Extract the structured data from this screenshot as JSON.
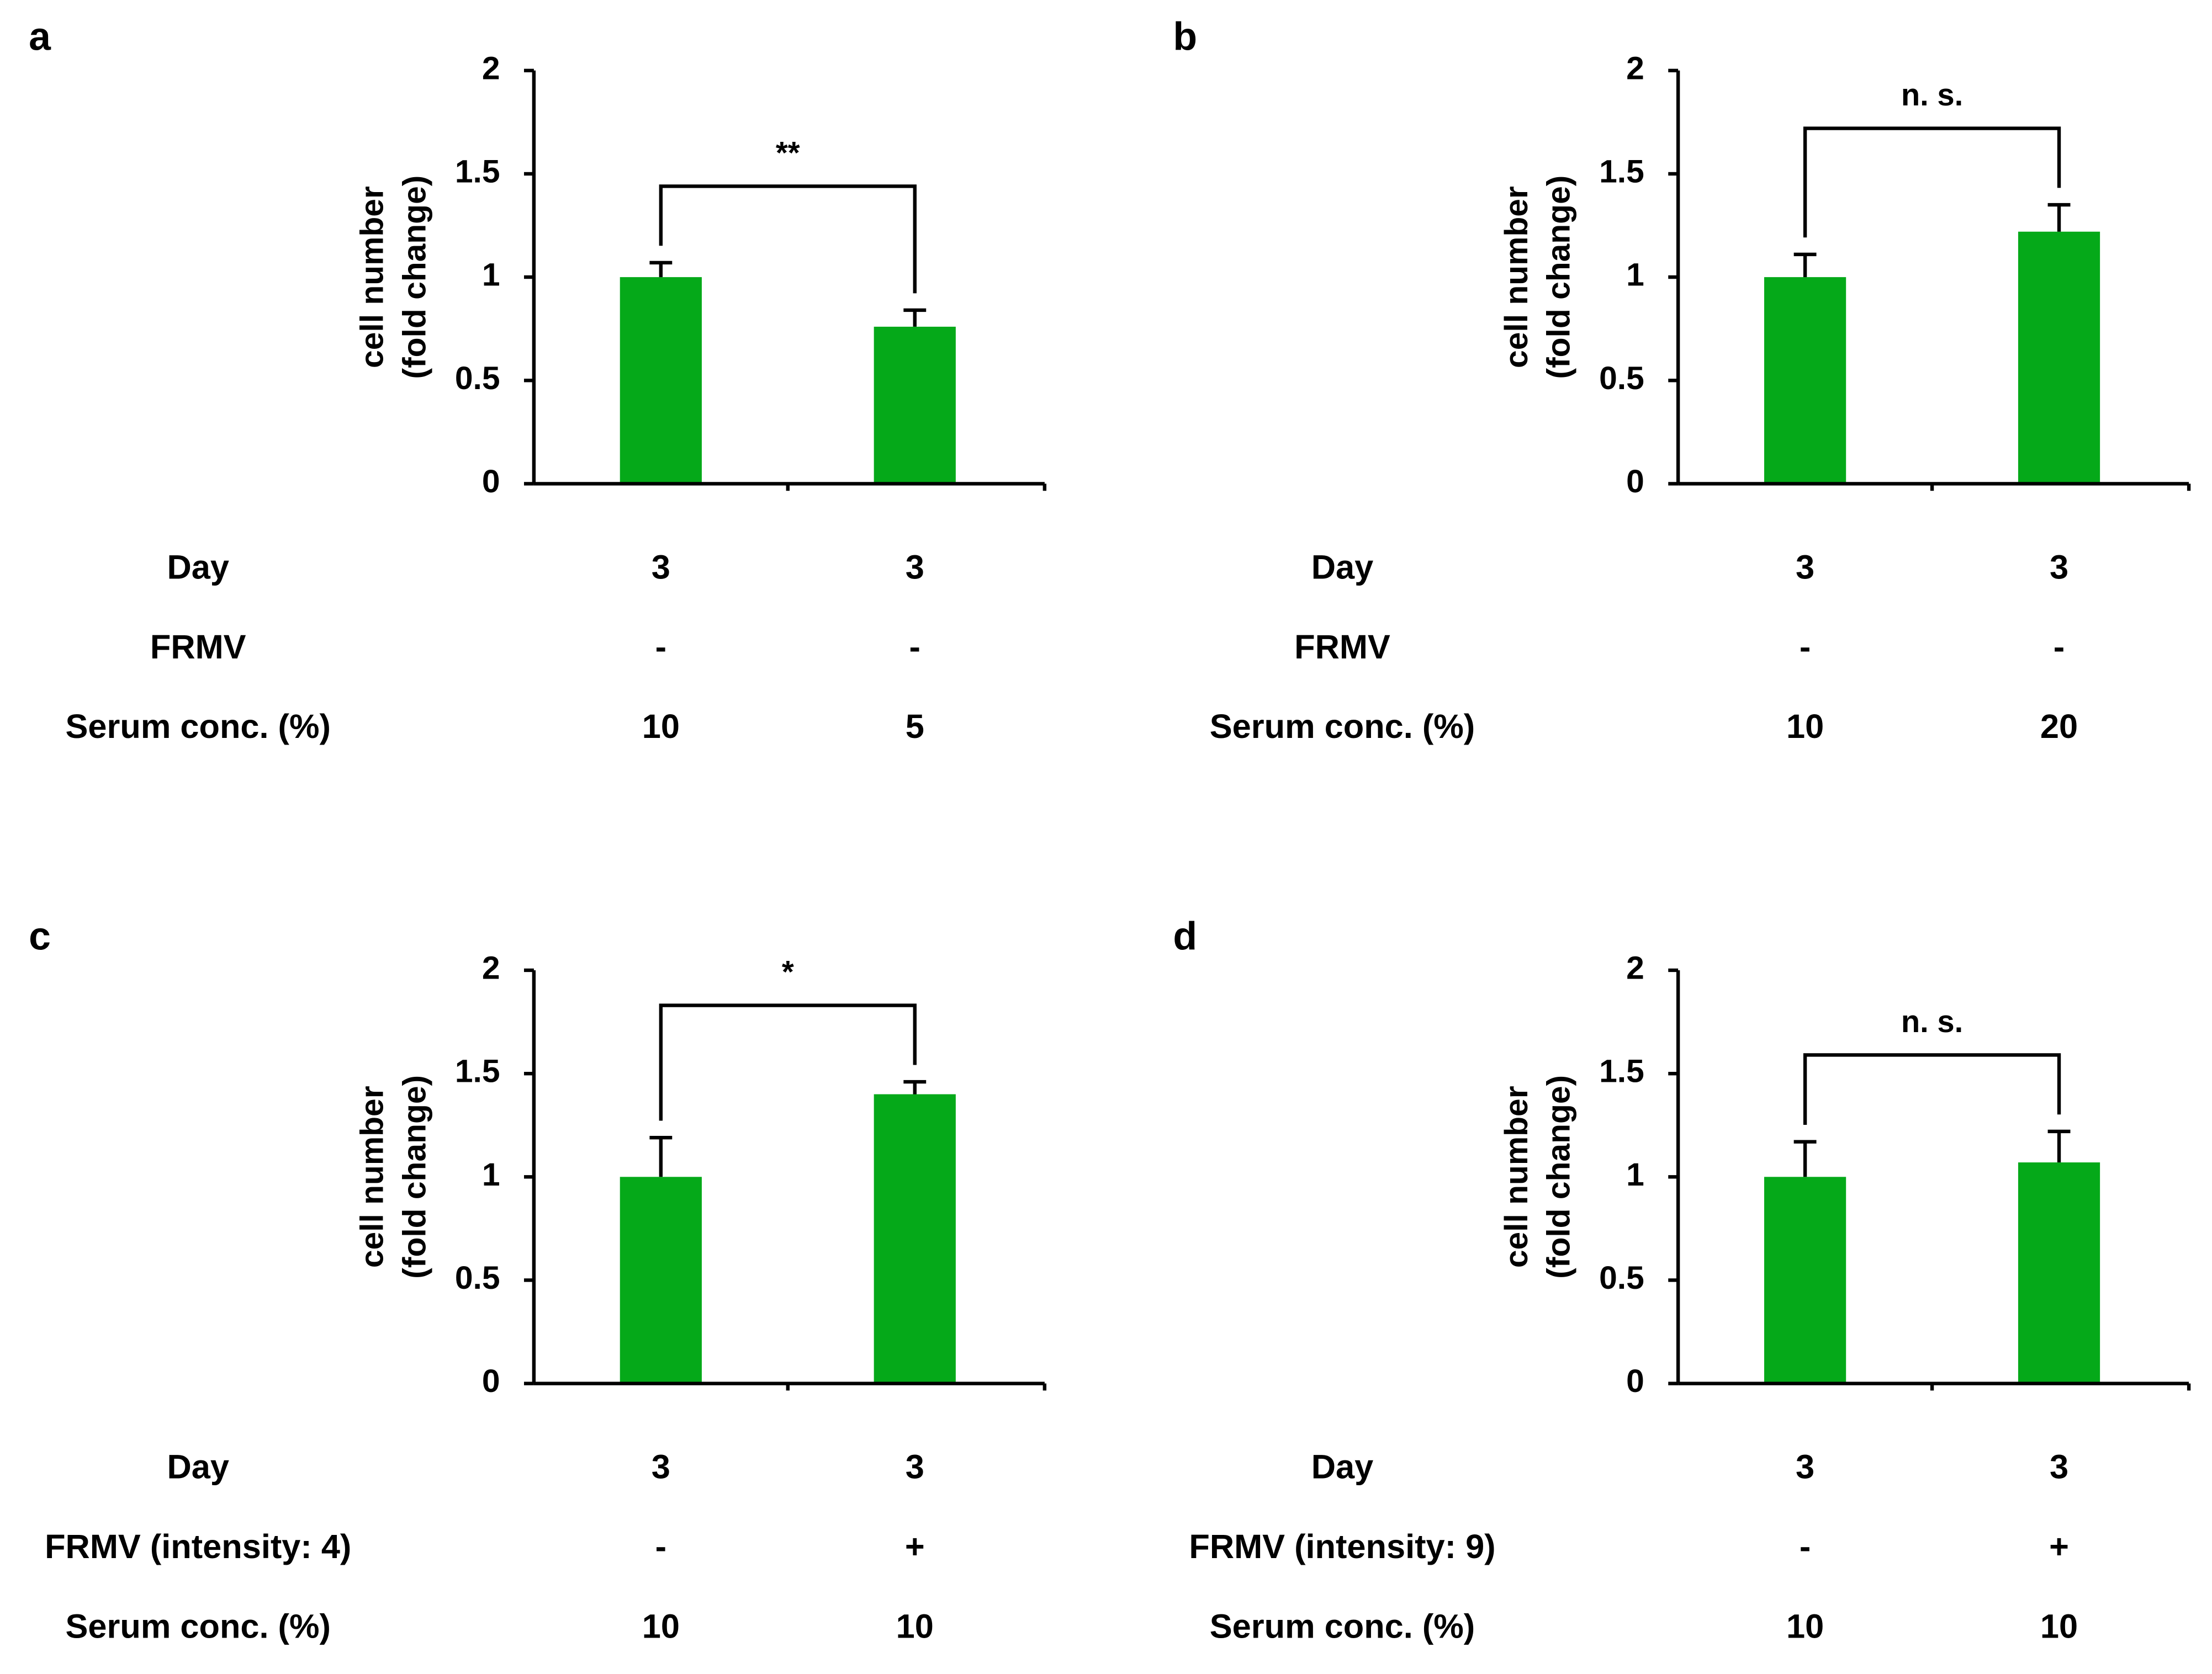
{
  "chart_data": [
    {
      "type": "bar",
      "panel": "a",
      "ylabel": [
        "cell number",
        "(fold change)"
      ],
      "ylim": [
        0,
        2
      ],
      "yticks": [
        0,
        0.5,
        1,
        1.5,
        2
      ],
      "values": [
        1.0,
        0.76
      ],
      "errors": [
        0.07,
        0.08
      ],
      "color": "#05a919",
      "significance": "**",
      "table": [
        {
          "label": "Day",
          "values": [
            "3",
            "3"
          ]
        },
        {
          "label": "FRMV",
          "values": [
            "-",
            "-"
          ]
        },
        {
          "label": "Serum conc. (%)",
          "values": [
            "10",
            "5"
          ]
        }
      ]
    },
    {
      "type": "bar",
      "panel": "b",
      "ylabel": [
        "cell number",
        "(fold change)"
      ],
      "ylim": [
        0,
        2
      ],
      "yticks": [
        0,
        0.5,
        1,
        1.5,
        2
      ],
      "values": [
        1.0,
        1.22
      ],
      "errors": [
        0.11,
        0.13
      ],
      "color": "#05a919",
      "significance": "n. s.",
      "table": [
        {
          "label": "Day",
          "values": [
            "3",
            "3"
          ]
        },
        {
          "label": "FRMV",
          "values": [
            "-",
            "-"
          ]
        },
        {
          "label": "Serum conc. (%)",
          "values": [
            "10",
            "20"
          ]
        }
      ]
    },
    {
      "type": "bar",
      "panel": "c",
      "ylabel": [
        "cell number",
        "(fold change)"
      ],
      "ylim": [
        0,
        2
      ],
      "yticks": [
        0,
        0.5,
        1,
        1.5,
        2
      ],
      "values": [
        1.0,
        1.4
      ],
      "errors": [
        0.19,
        0.06
      ],
      "color": "#05a919",
      "significance": "*",
      "table": [
        {
          "label": "Day",
          "values": [
            "3",
            "3"
          ]
        },
        {
          "label": "FRMV (intensity: 4)",
          "values": [
            "-",
            "+"
          ]
        },
        {
          "label": "Serum conc. (%)",
          "values": [
            "10",
            "10"
          ]
        }
      ]
    },
    {
      "type": "bar",
      "panel": "d",
      "ylabel": [
        "cell number",
        "(fold change)"
      ],
      "ylim": [
        0,
        2
      ],
      "yticks": [
        0,
        0.5,
        1,
        1.5,
        2
      ],
      "values": [
        1.0,
        1.07
      ],
      "errors": [
        0.17,
        0.15
      ],
      "color": "#05a919",
      "significance": "n. s.",
      "table": [
        {
          "label": "Day",
          "values": [
            "3",
            "3"
          ]
        },
        {
          "label": "FRMV (intensity: 9)",
          "values": [
            "-",
            "+"
          ]
        },
        {
          "label": "Serum conc. (%)",
          "values": [
            "10",
            "10"
          ]
        }
      ]
    }
  ]
}
